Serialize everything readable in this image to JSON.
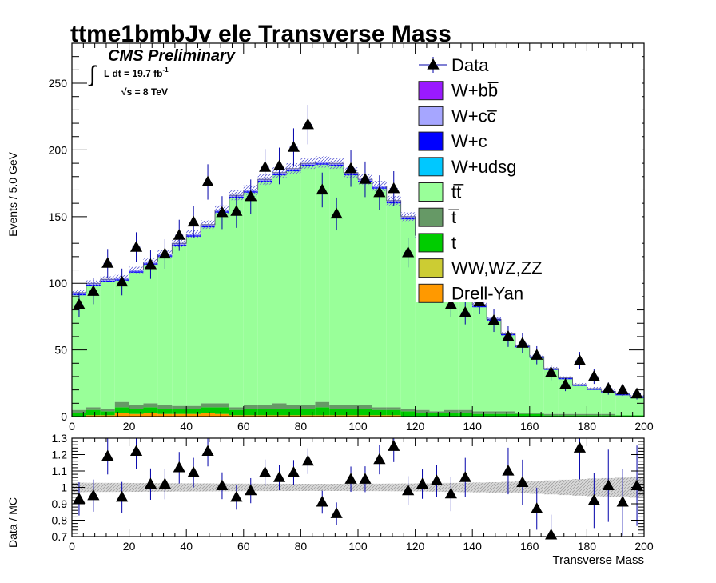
{
  "title": "ttme1bmbJv ele Transverse Mass",
  "annotations": {
    "cms": "CMS Preliminary",
    "lumi_prefix": "L dt = 19.7 fb",
    "lumi_exp": "-1",
    "energy": "√s = 8 TeV",
    "integral_symbol": "∫"
  },
  "legend": [
    {
      "label": "Data",
      "kind": "marker",
      "color": "#000000"
    },
    {
      "label": "W+bb̅",
      "kind": "box",
      "color": "#9a1aff"
    },
    {
      "label": "W+cc̅",
      "kind": "box",
      "color": "#a6a6ff"
    },
    {
      "label": "W+c",
      "kind": "box",
      "color": "#0000ff"
    },
    {
      "label": "W+udsg",
      "kind": "box",
      "color": "#00c8ff"
    },
    {
      "label": "tt̅",
      "kind": "box",
      "color": "#99ff99"
    },
    {
      "label": "t̅",
      "kind": "box",
      "color": "#669966"
    },
    {
      "label": "t",
      "kind": "box",
      "color": "#00cc00"
    },
    {
      "label": "WW,WZ,ZZ",
      "kind": "box",
      "color": "#cccc33"
    },
    {
      "label": "Drell-Yan",
      "kind": "box",
      "color": "#ff9900"
    }
  ],
  "chart_data": [
    {
      "type": "bar",
      "panel": "main",
      "ylabel": "Events / 5.0 GeV",
      "xlim": [
        0,
        200
      ],
      "ylim": [
        0,
        280
      ],
      "x_ticks": [
        0,
        20,
        40,
        60,
        80,
        100,
        120,
        140,
        160,
        180,
        200
      ],
      "y_ticks": [
        0,
        50,
        100,
        150,
        200,
        250
      ],
      "bin_edges": [
        0,
        5,
        10,
        15,
        20,
        25,
        30,
        35,
        40,
        45,
        50,
        55,
        60,
        65,
        70,
        75,
        80,
        85,
        90,
        95,
        100,
        105,
        110,
        115,
        120,
        125,
        130,
        135,
        140,
        145,
        150,
        155,
        160,
        165,
        170,
        175,
        180,
        185,
        190,
        195,
        200
      ],
      "mc_total": [
        93,
        100,
        103,
        104,
        110,
        116,
        122,
        130,
        137,
        144,
        155,
        166,
        170,
        178,
        183,
        186,
        190,
        191,
        190,
        183,
        178,
        173,
        162,
        150,
        136,
        120,
        106,
        93,
        84,
        73,
        62,
        53,
        45,
        36,
        29,
        24,
        21,
        19,
        17,
        15
      ],
      "stack": [
        {
          "name": "Drell-Yan",
          "color": "#ff9900",
          "values": [
            0,
            1,
            1,
            3,
            2,
            3,
            2,
            2,
            2,
            3,
            2,
            1,
            1,
            1,
            1,
            1,
            1,
            1,
            1,
            1,
            1,
            1,
            1,
            0,
            0,
            0,
            0,
            0,
            0,
            0,
            0,
            0,
            0,
            0,
            0,
            0,
            0,
            0,
            0,
            0
          ]
        },
        {
          "name": "WW,WZ,ZZ",
          "color": "#cccc33",
          "values": [
            0,
            0,
            0,
            0,
            0,
            0,
            0,
            0,
            0,
            0,
            0,
            0,
            0,
            0,
            0,
            0,
            0,
            0,
            0,
            0,
            0,
            0,
            0,
            0,
            0,
            0,
            0,
            0,
            0,
            0,
            0,
            0,
            0,
            0,
            0,
            0,
            0,
            0,
            0,
            0
          ]
        },
        {
          "name": "t",
          "color": "#00cc00",
          "values": [
            3,
            4,
            3,
            4,
            4,
            4,
            4,
            4,
            4,
            4,
            5,
            4,
            5,
            5,
            5,
            5,
            5,
            6,
            5,
            5,
            5,
            4,
            4,
            4,
            3,
            3,
            3,
            3,
            2,
            2,
            2,
            2,
            2,
            1,
            1,
            1,
            1,
            1,
            1,
            1
          ]
        },
        {
          "name": "t̅",
          "color": "#669966",
          "values": [
            2,
            2,
            2,
            4,
            3,
            3,
            3,
            2,
            2,
            3,
            3,
            2,
            3,
            3,
            4,
            3,
            3,
            4,
            3,
            3,
            3,
            2,
            2,
            2,
            2,
            1,
            2,
            2,
            2,
            2,
            2,
            1,
            1,
            1,
            1,
            1,
            1,
            1,
            0,
            0
          ]
        },
        {
          "name": "tt̅",
          "color": "#99ff99",
          "values": [
            86,
            91,
            95,
            91,
            99,
            104,
            111,
            120,
            127,
            132,
            143,
            157,
            159,
            167,
            171,
            175,
            179,
            178,
            179,
            172,
            167,
            164,
            153,
            142,
            129,
            114,
            99,
            86,
            78,
            68,
            57,
            49,
            41,
            33,
            26,
            21,
            18,
            16,
            15,
            13
          ]
        },
        {
          "name": "W+udsg",
          "color": "#00c8ff",
          "values": [
            0,
            0,
            0,
            0,
            0,
            0,
            0,
            0,
            0,
            0,
            0,
            0,
            0,
            0,
            0,
            0,
            0,
            0,
            0,
            0,
            0,
            0,
            0,
            0,
            0,
            0,
            0,
            0,
            0,
            0,
            0,
            0,
            0,
            0,
            0,
            0,
            0,
            0,
            0,
            0
          ]
        },
        {
          "name": "W+c",
          "color": "#0000ff",
          "values": [
            1,
            1,
            1,
            1,
            1,
            1,
            1,
            1,
            1,
            1,
            1,
            1,
            1,
            1,
            1,
            1,
            1,
            1,
            1,
            1,
            1,
            1,
            1,
            1,
            1,
            1,
            1,
            1,
            1,
            1,
            1,
            1,
            1,
            1,
            1,
            1,
            1,
            1,
            1,
            1
          ]
        },
        {
          "name": "W+cc̅",
          "color": "#a6a6ff",
          "values": [
            1,
            1,
            1,
            1,
            1,
            1,
            1,
            1,
            1,
            1,
            1,
            1,
            1,
            1,
            1,
            1,
            1,
            1,
            1,
            1,
            1,
            1,
            1,
            1,
            1,
            1,
            1,
            1,
            1,
            1,
            0,
            0,
            0,
            0,
            0,
            0,
            0,
            0,
            0,
            0
          ]
        },
        {
          "name": "W+bb̅",
          "color": "#9a1aff",
          "values": [
            0,
            0,
            0,
            0,
            0,
            0,
            0,
            0,
            0,
            0,
            0,
            0,
            0,
            0,
            0,
            0,
            0,
            0,
            0,
            0,
            0,
            0,
            0,
            0,
            0,
            0,
            0,
            0,
            0,
            0,
            0,
            0,
            0,
            0,
            0,
            0,
            0,
            0,
            0,
            0
          ]
        }
      ],
      "data_points": {
        "name": "Data",
        "x": [
          2.5,
          7.5,
          12.5,
          17.5,
          22.5,
          27.5,
          32.5,
          37.5,
          42.5,
          47.5,
          52.5,
          57.5,
          62.5,
          67.5,
          72.5,
          77.5,
          82.5,
          87.5,
          92.5,
          97.5,
          102.5,
          107.5,
          112.5,
          117.5,
          122.5,
          127.5,
          132.5,
          137.5,
          142.5,
          147.5,
          152.5,
          157.5,
          162.5,
          167.5,
          172.5,
          177.5,
          182.5,
          187.5,
          192.5,
          197.5
        ],
        "y": [
          84,
          94,
          115,
          101,
          127,
          114,
          122,
          136,
          146,
          176,
          153,
          154,
          165,
          187,
          188,
          202,
          219,
          170,
          152,
          186,
          178,
          168,
          171,
          123,
          130,
          116,
          84,
          78,
          86,
          72,
          60,
          55,
          46,
          33,
          24,
          42,
          30,
          21,
          20,
          17
        ]
      }
    },
    {
      "type": "scatter",
      "panel": "ratio",
      "ylabel": "Data / MC",
      "xlabel": "Transverse Mass",
      "xlim": [
        0,
        200
      ],
      "ylim": [
        0.7,
        1.3
      ],
      "x_ticks": [
        0,
        20,
        40,
        60,
        80,
        100,
        120,
        140,
        160,
        180,
        200
      ],
      "y_ticks": [
        0.7,
        0.8,
        0.9,
        1,
        1.1,
        1.2,
        1.3
      ],
      "x": [
        2.5,
        7.5,
        12.5,
        17.5,
        22.5,
        27.5,
        32.5,
        37.5,
        42.5,
        47.5,
        52.5,
        57.5,
        62.5,
        67.5,
        72.5,
        77.5,
        82.5,
        87.5,
        92.5,
        97.5,
        102.5,
        107.5,
        112.5,
        117.5,
        122.5,
        127.5,
        132.5,
        137.5,
        142.5,
        147.5,
        152.5,
        157.5,
        162.5,
        167.5,
        172.5,
        177.5,
        182.5,
        187.5,
        192.5,
        197.5
      ],
      "y": [
        0.93,
        0.95,
        1.19,
        0.94,
        1.22,
        1.02,
        1.02,
        1.12,
        1.09,
        1.22,
        1.01,
        0.94,
        0.98,
        1.09,
        1.06,
        1.09,
        1.16,
        0.91,
        0.84,
        1.05,
        1.05,
        1.17,
        1.25,
        0.98,
        1.02,
        1.04,
        0.96,
        1.06,
        null,
        null,
        1.1,
        1.03,
        0.87,
        0.71,
        null,
        1.24,
        0.92,
        1.01,
        0.91,
        1.01
      ]
    }
  ]
}
